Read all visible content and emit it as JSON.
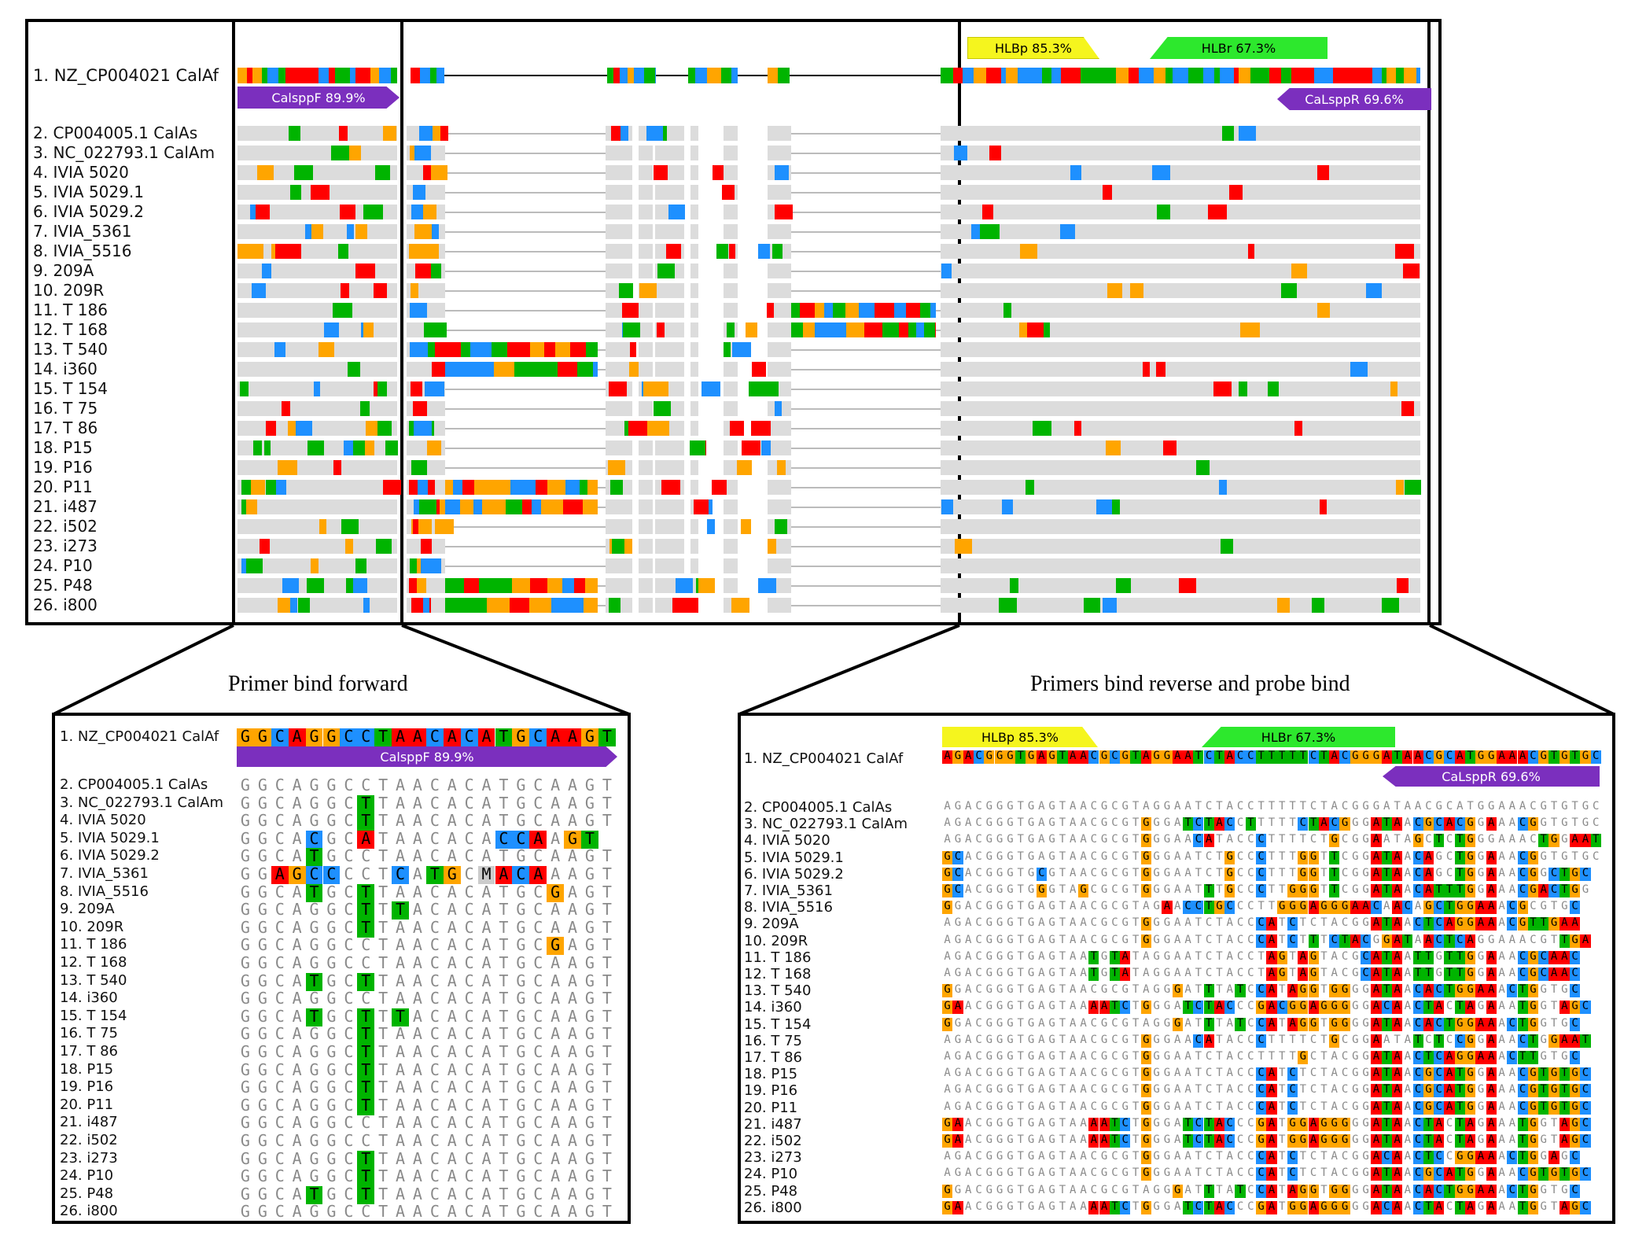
{
  "colors": {
    "A": "#ff0000",
    "C": "#1e90ff",
    "G": "#ffa500",
    "T": "#00b400",
    "gray": "#dcdcdc",
    "purple": "#7b2fbe",
    "yellow": "#f5f51e",
    "green": "#2de82d"
  },
  "overview": {
    "ref_label": "1. NZ_CP004021 CalAf",
    "primers": {
      "forward": "CalsppF 89.9%",
      "probe": "HLBp 85.3%",
      "reverse_probe": "HLBr 67.3%",
      "reverse": "CaLsppR 69.6%"
    },
    "rows": [
      "2. CP004005.1 CalAs",
      "3. NC_022793.1 CalAm",
      "4. IVIA 5020",
      "5. IVIA 5029.1",
      "6. IVIA 5029.2",
      "7. IVIA_5361",
      "8. IVIA_5516",
      "9. 209A",
      "10. 209R",
      "11. T 186",
      "12. T 168",
      "13. T 540",
      "14. i360",
      "15. T 154",
      "16. T 75",
      "17. T 86",
      "18. P15",
      "19. P16",
      "20. P11",
      "21. i487",
      "22. i502",
      "23. i273",
      "24. P10",
      "25. P48",
      "26. i800"
    ]
  },
  "forward_panel": {
    "title": "Primer bind forward",
    "ref_label": "1. NZ_CP004021 CalAf",
    "ref_seq": "GGCAGGCCTAACACATGCAAGT",
    "primer": "CalsppF 89.9%",
    "rows": [
      {
        "label": "2. CP004005.1 CalAs",
        "seq": "GGCAGGCCTAACACATGCAAGT"
      },
      {
        "label": "3. NC_022793.1 CalAm",
        "seq": "GGCAGGCTTAACACATGCAAGT"
      },
      {
        "label": "4. IVIA 5020",
        "seq": "GGCAGGCTTAACACATGCAAGT"
      },
      {
        "label": "5. IVIA 5029.1",
        "seq": "GGCACGCATAACACACCAAGT"
      },
      {
        "label": "6. IVIA 5029.2",
        "seq": "GGCATGCCTAACACATGCAAGT"
      },
      {
        "label": "7. IVIA_5361",
        "seq": "GGAGCCCCTCATGCMACAAAGT"
      },
      {
        "label": "8. IVIA_5516",
        "seq": "GGCATGCTTAACACATGCGAGT"
      },
      {
        "label": "9. 209A",
        "seq": "GGCAGGCTTTACACATGCAAGT"
      },
      {
        "label": "10. 209R",
        "seq": "GGCAGGCTTAACACATGCAAGT"
      },
      {
        "label": "11. T 186",
        "seq": "GGCAGGCCTAACACATGCGAGT"
      },
      {
        "label": "12. T 168",
        "seq": "GGCAGGCCTAACACATGCAAGT"
      },
      {
        "label": "13. T 540",
        "seq": "GGCATGCTTAACACATGCAAGT"
      },
      {
        "label": "14. i360",
        "seq": "GGCAGGCCTAACACATGCAAGT"
      },
      {
        "label": "15. T 154",
        "seq": "GGCATGCTTTACACATGCAAGT"
      },
      {
        "label": "16. T 75",
        "seq": "GGCAGGCTTAACACATGCAAGT"
      },
      {
        "label": "17. T 86",
        "seq": "GGCAGGCTTAACACATGCAAGT"
      },
      {
        "label": "18. P15",
        "seq": "GGCAGGCTTAACACATGCAAGT"
      },
      {
        "label": "19. P16",
        "seq": "GGCAGGCTTAACACATGCAAGT"
      },
      {
        "label": "20. P11",
        "seq": "GGCAGGCTTAACACATGCAAGT"
      },
      {
        "label": "21. i487",
        "seq": "GGCAGGCCTAACACATGCAAGT"
      },
      {
        "label": "22. i502",
        "seq": "GGCAGGCCTAACACATGCAAGT"
      },
      {
        "label": "23. i273",
        "seq": "GGCAGGCTTAACACATGCAAGT"
      },
      {
        "label": "24. P10",
        "seq": "GGCAGGCTTAACACATGCAAGT"
      },
      {
        "label": "25. P48",
        "seq": "GGCATGCTTAACACATGCAAGT"
      },
      {
        "label": "26. i800",
        "seq": "GGCAGGCCTAACACATGCAAGT"
      }
    ]
  },
  "reverse_panel": {
    "title": "Primers bind reverse and probe bind",
    "ref_label": "1. NZ_CP004021 CalAf",
    "ref_seq": "AGACGGGTGAGTAACGCGTAGGAATCTACCTTTTTCTACGGGATAACGCATGGAAACGTGTGC",
    "probe": "HLBp 85.3%",
    "probe_r": "HLBr 67.3%",
    "primer": "CaLsppR 69.6%",
    "rows": [
      {
        "label": "2. CP004005.1 CalAs",
        "seq": "AGACGGGTGAGTAACGCGTAGGAATCTACCTTTTTCTACGGGATAACGCATGGAAACGTGTGC"
      },
      {
        "label": "3. NC_022793.1 CalAm",
        "seq": "AGACGGGTGAGTAACGCGTGGGATCTACCTTTTTCTACGGGATAACGCACGGAAACGGTGTGC"
      },
      {
        "label": "4. IVIA 5020",
        "seq": "AGACGGGTGAGTAACGCGTGGGAACATACCCTTTTCTGCGGAATAGCTCTGGGAAACTGGAAT"
      },
      {
        "label": "5. IVIA 5029.1",
        "seq": "GCACGGGTGAGTAACGCGTGGGAATCTGCCCTTTGGTTCGGATAACAGCTGGAAACGGTGTGC"
      },
      {
        "label": "6. IVIA 5029.2",
        "seq": "GCACGGGTGCGTAACGCGTGGGAATCTGCCCTTTGGTTCGGATAACAGCTGGAAACGGCTGC"
      },
      {
        "label": "7. IVIA_5361",
        "seq": "GCACGGGTGGGTAGCGCGTGGGAATTTGCCCTTGGGTTCGGATAACATTTGGAAACGACTGG"
      },
      {
        "label": "8. IVIA_5516",
        "seq": "GGACGGGTGAGTAACGCGTAGAACCTGCCCTTGGGAGGGAACAACAGCTGGAAACGCGTGC"
      },
      {
        "label": "9. 209A",
        "seq": "AGACGGGTGAGTAACGCGTGGGAATCTACCCATCTCTACGGATAACTCAGGAAACGTTGAA"
      },
      {
        "label": "10. 209R",
        "seq": "AGACGGGTGAGTAACGCGTGGGAATCTACCCATCTTTCTACGGATAACTCAGGAAACGTTGA"
      },
      {
        "label": "11. T 186",
        "seq": "AGACGGGTGAGTAATGTATAGGAATCTACCTAGTAGTACGCATAATTGTTGGAAACGCAAC"
      },
      {
        "label": "12. T 168",
        "seq": "AGACGGGTGAGTAATGTATAGGAATCTACCTAGTAGTACGCATAATTGTTGGAAACGCAAC"
      },
      {
        "label": "13. T 540",
        "seq": "GGACGGGTGAGTAACGCGTAGGGATTTATCCATAGGTGGGGATAACACTGGAAACTGGTGC"
      },
      {
        "label": "14. i360",
        "seq": "GAACGGGTGAGTAAAATCTGGGATCTACCCGACGGAGGGGGACAACTACTAGAAATGGTAGC"
      },
      {
        "label": "15. T 154",
        "seq": "GGACGGGTGAGTAACGCGTAGGGATTTATCCATAGGTGGGGATAACACTGGAAACTGGTGC"
      },
      {
        "label": "16. T 75",
        "seq": "AGACGGGTGAGTAACGCGTGGGAACATACCCTTTTCTGCGGAATATCTCCGGAAACTGGAAT"
      },
      {
        "label": "17. T 86",
        "seq": "AGACGGGTGAGTAACGCGTGGGAATCTACCTTTTGCTACGGATAACTCAGGAAACTTGTGC"
      },
      {
        "label": "18. P15",
        "seq": "AGACGGGTGAGTAACGCGTGGGAATCTACCCATCTCTACGGATAACGCATGGAAACGTGTGC"
      },
      {
        "label": "19. P16",
        "seq": "AGACGGGTGAGTAACGCGTGGGAATCTACCCATCTCTACGGATAACGCATGGAAACGTGTGC"
      },
      {
        "label": "20. P11",
        "seq": "AGACGGGTGAGTAACGCGTGGGAATCTACCCATCTCTACGGATAACGCATGGAAACGTGTGC"
      },
      {
        "label": "21. i487",
        "seq": "GAACGGGTGAGTAAAATCTGGGATCTACCCGATGGAGGGGGATAACTACTAGAAATGGTAGC"
      },
      {
        "label": "22. i502",
        "seq": "GAACGGGTGAGTAAAATCTGGGATCTACCCGATGGAGGGGGATAACTACTAGAAATGGTAGC"
      },
      {
        "label": "23. i273",
        "seq": "AGACGGGTGAGTAACGCGTGGGAATCTACCCATCTCTACGGACAACTCCGGAAACTGGAGC"
      },
      {
        "label": "24. P10",
        "seq": "AGACGGGTGAGTAACGCGTGGGAATCTACCCATCTCTACGGATAACGCATGGAAACGTGTGC"
      },
      {
        "label": "25. P48",
        "seq": "GGACGGGTGAGTAACGCGTAGGGATTTATCCATAGGTGGGGATAACACTGGAAACTGGTGC"
      },
      {
        "label": "26. i800",
        "seq": "GAACGGGTGAGTAAAATCTGGGATCTACCCGATGGAGGGGGACAACTACTAGAAATGGTAGC"
      }
    ]
  }
}
